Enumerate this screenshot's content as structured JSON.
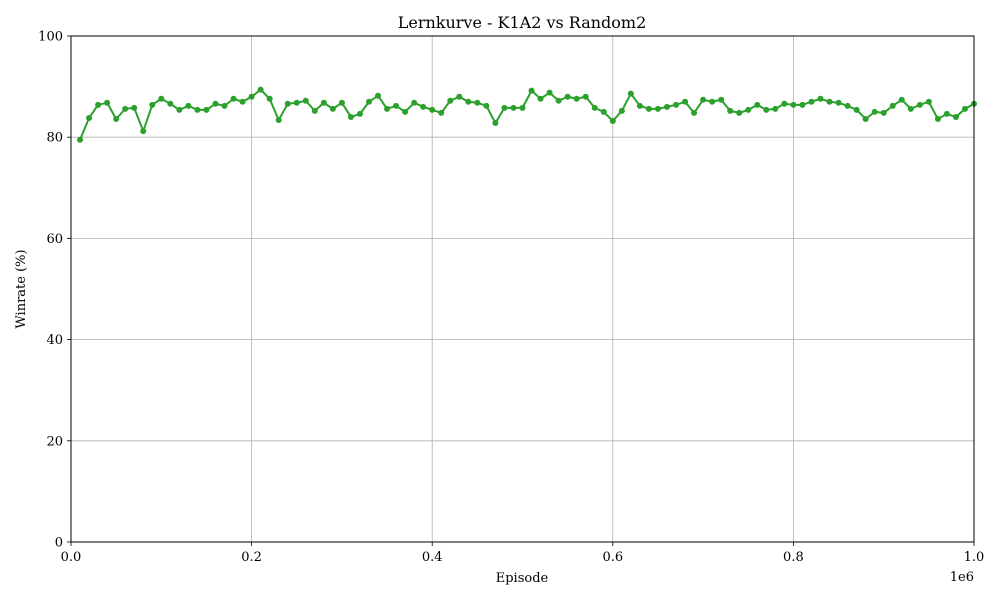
{
  "chart_data": {
    "type": "line",
    "title": "Lernkurve - K1A2 vs Random2",
    "xlabel": "Episode",
    "ylabel": "Winrate (%)",
    "x_offset_label": "1e6",
    "xlim": [
      0,
      1.0
    ],
    "ylim": [
      0,
      100
    ],
    "x_ticks": [
      0.0,
      0.2,
      0.4,
      0.6,
      0.8,
      1.0
    ],
    "x_tick_labels": [
      "0.0",
      "0.2",
      "0.4",
      "0.6",
      "0.8",
      "1.0"
    ],
    "y_ticks": [
      0,
      20,
      40,
      60,
      80,
      100
    ],
    "y_tick_labels": [
      "0",
      "20",
      "40",
      "60",
      "80",
      "100"
    ],
    "grid": true,
    "color": "#2ca02c",
    "series": [
      {
        "x": [
          0.01,
          0.02,
          0.03,
          0.04,
          0.05,
          0.06,
          0.07,
          0.08,
          0.09,
          0.1,
          0.11,
          0.12,
          0.13,
          0.14,
          0.15,
          0.16,
          0.17,
          0.18,
          0.19,
          0.2,
          0.21,
          0.22,
          0.23,
          0.24,
          0.25,
          0.26,
          0.27,
          0.28,
          0.29,
          0.3,
          0.31,
          0.32,
          0.33,
          0.34,
          0.35,
          0.36,
          0.37,
          0.38,
          0.39,
          0.4,
          0.41,
          0.42,
          0.43,
          0.44,
          0.45,
          0.46,
          0.47,
          0.48,
          0.49,
          0.5,
          0.51,
          0.52,
          0.53,
          0.54,
          0.55,
          0.56,
          0.57,
          0.58,
          0.59,
          0.6,
          0.61,
          0.62,
          0.63,
          0.64,
          0.65,
          0.66,
          0.67,
          0.68,
          0.69,
          0.7,
          0.71,
          0.72,
          0.73,
          0.74,
          0.75,
          0.76,
          0.77,
          0.78,
          0.79,
          0.8,
          0.81,
          0.82,
          0.83,
          0.84,
          0.85,
          0.86,
          0.87,
          0.88,
          0.89,
          0.9,
          0.91,
          0.92,
          0.93,
          0.94,
          0.95,
          0.96,
          0.97,
          0.98,
          0.99,
          1.0
        ],
        "y": [
          79.5,
          83.8,
          86.4,
          86.8,
          83.6,
          85.6,
          85.8,
          81.2,
          86.4,
          87.6,
          86.6,
          85.4,
          86.2,
          85.4,
          85.4,
          86.6,
          86.2,
          87.6,
          87.0,
          88.0,
          89.4,
          87.6,
          83.4,
          86.6,
          86.8,
          87.2,
          85.2,
          86.8,
          85.6,
          86.8,
          84.0,
          84.6,
          87.0,
          88.2,
          85.6,
          86.2,
          85.0,
          86.8,
          86.0,
          85.4,
          84.8,
          87.2,
          88.0,
          87.0,
          86.8,
          86.2,
          82.8,
          85.8,
          85.8,
          85.8,
          89.2,
          87.6,
          88.8,
          87.2,
          88.0,
          87.6,
          88.0,
          85.8,
          85.0,
          83.2,
          85.2,
          88.6,
          86.2,
          85.6,
          85.6,
          86.0,
          86.4,
          87.0,
          84.8,
          87.4,
          87.0,
          87.4,
          85.2,
          84.8,
          85.4,
          86.4,
          85.4,
          85.6,
          86.6,
          86.4,
          86.4,
          87.0,
          87.6,
          87.0,
          86.8,
          86.2,
          85.4,
          83.6,
          85.0,
          84.8,
          86.2,
          87.4,
          85.6,
          86.4,
          87.0,
          83.6,
          84.6,
          84.0,
          85.6,
          86.6
        ]
      }
    ]
  }
}
